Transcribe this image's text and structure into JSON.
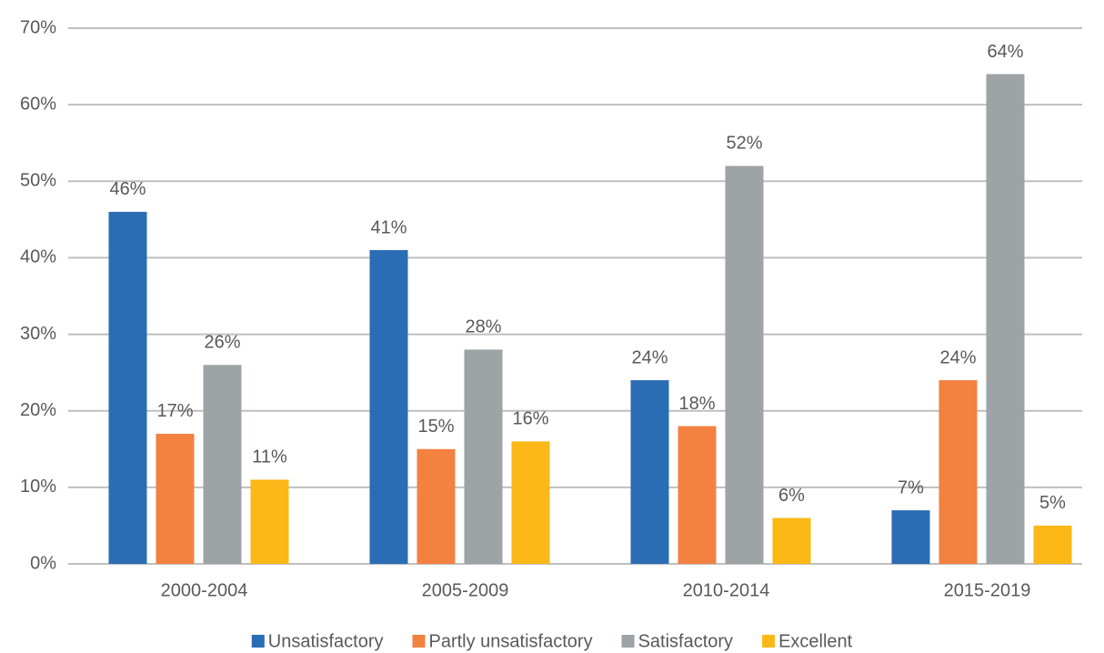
{
  "chart_data": {
    "type": "bar",
    "categories": [
      "2000-2004",
      "2005-2009",
      "2010-2014",
      "2015-2019"
    ],
    "series": [
      {
        "name": "Unsatisfactory",
        "color": "#2a6db5",
        "values": [
          46,
          41,
          24,
          7
        ],
        "value_labels": [
          "46%",
          "41%",
          "24%",
          "7%"
        ]
      },
      {
        "name": "Partly unsatisfactory",
        "color": "#f38140",
        "values": [
          17,
          15,
          18,
          24
        ],
        "value_labels": [
          "17%",
          "15%",
          "18%",
          "24%"
        ]
      },
      {
        "name": "Satisfactory",
        "color": "#9ea3a6",
        "values": [
          26,
          28,
          52,
          64
        ],
        "value_labels": [
          "26%",
          "28%",
          "52%",
          "64%"
        ]
      },
      {
        "name": "Excellent",
        "color": "#fcb817",
        "values": [
          11,
          16,
          6,
          5
        ],
        "value_labels": [
          "11%",
          "16%",
          "6%",
          "5%"
        ]
      }
    ],
    "ylim": [
      0,
      70
    ],
    "yticks": [
      {
        "value": 0,
        "label": "0%"
      },
      {
        "value": 10,
        "label": "10%"
      },
      {
        "value": 20,
        "label": "20%"
      },
      {
        "value": 30,
        "label": "30%"
      },
      {
        "value": 40,
        "label": "40%"
      },
      {
        "value": 50,
        "label": "50%"
      },
      {
        "value": 60,
        "label": "60%"
      },
      {
        "value": 70,
        "label": "70%"
      }
    ],
    "grid": true,
    "legend": "bottom"
  }
}
